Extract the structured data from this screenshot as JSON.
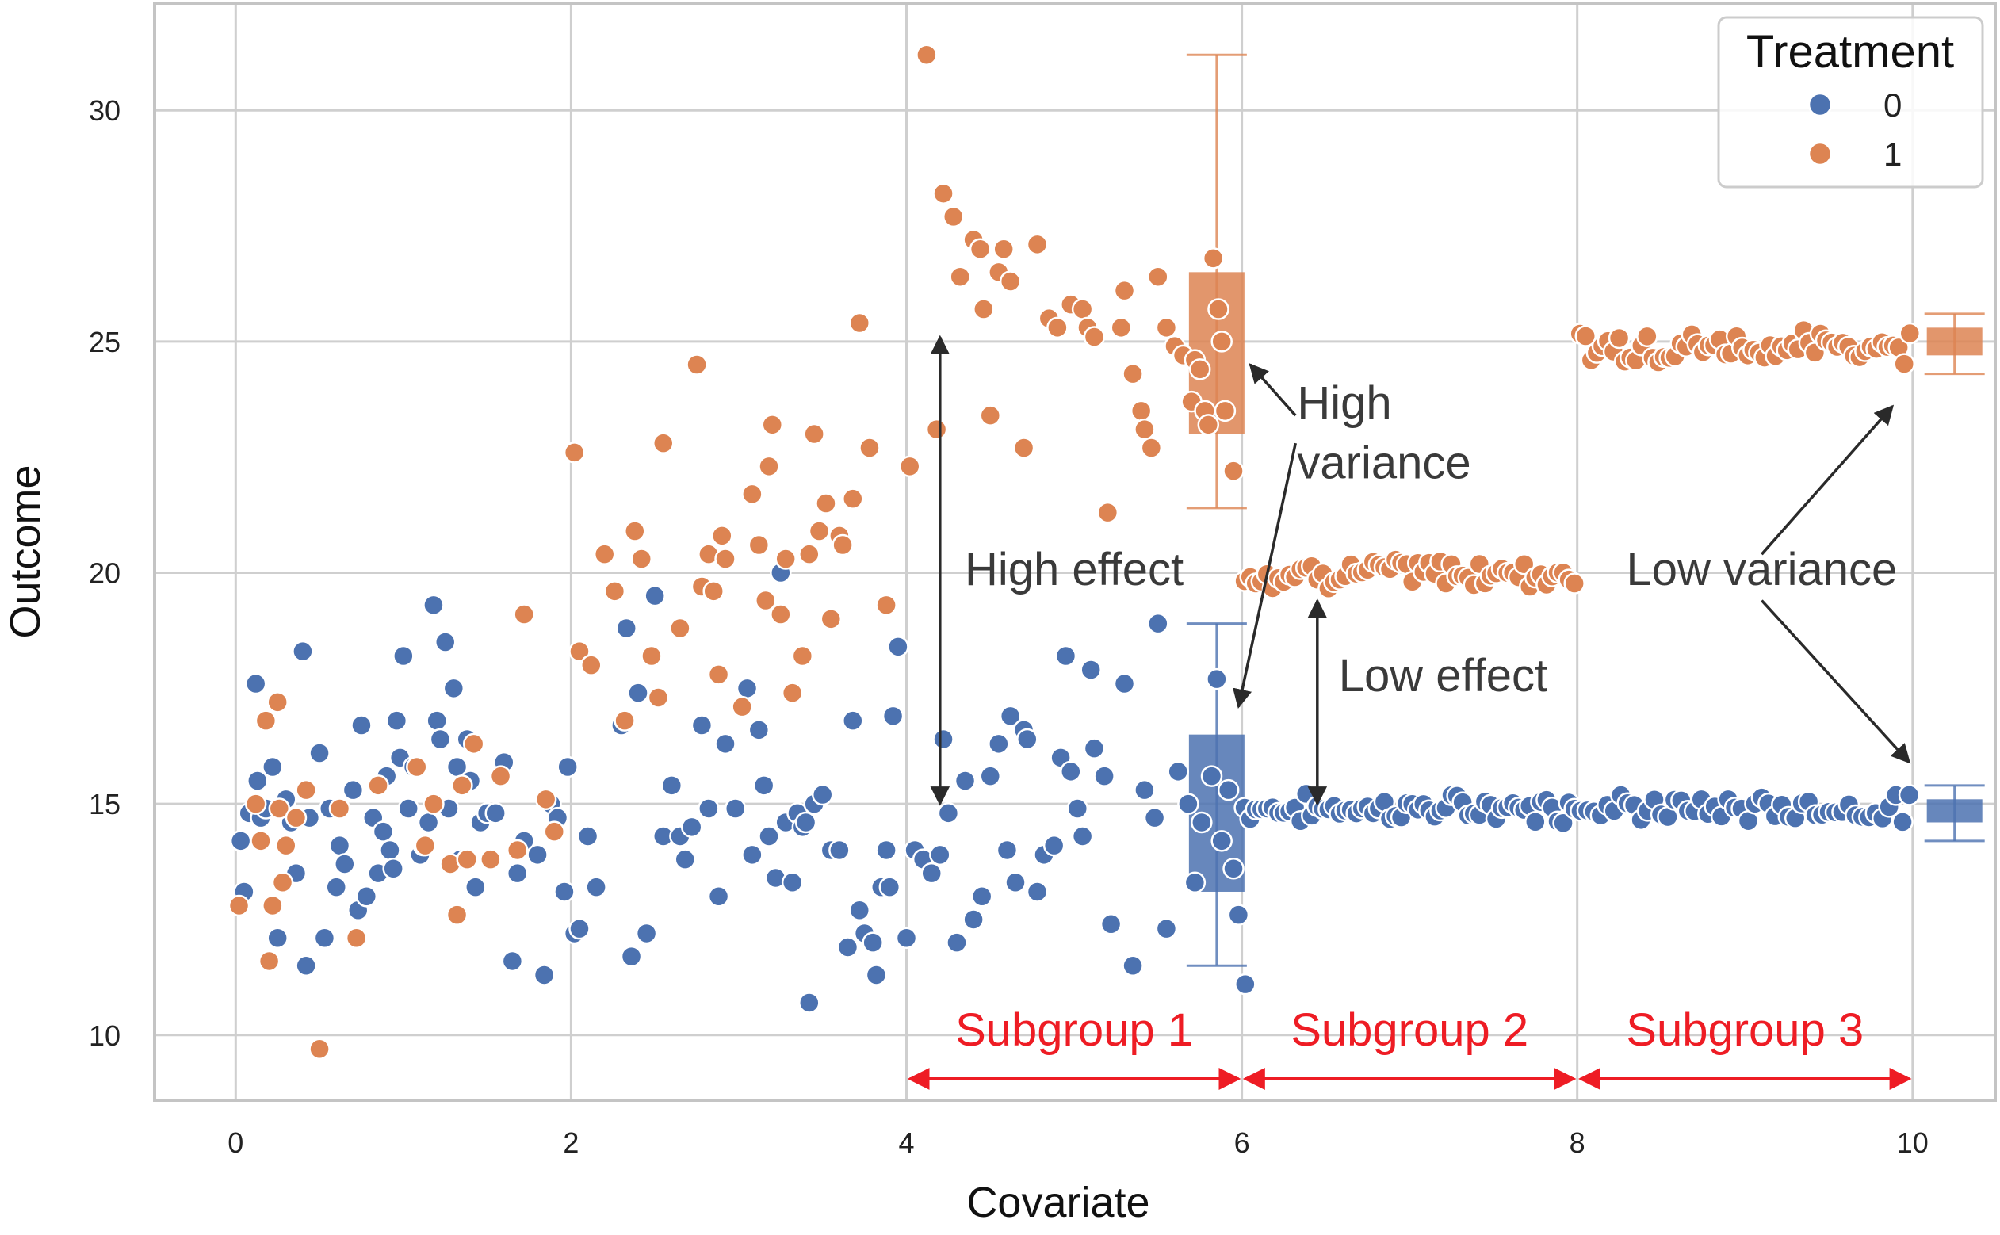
{
  "chart_data": {
    "type": "scatter",
    "xlabel": "Covariate",
    "ylabel": "Outcome",
    "xlim": [
      -0.5,
      10.5
    ],
    "ylim": [
      8.6,
      32.2
    ],
    "xticks": [
      0,
      2,
      4,
      6,
      8,
      10
    ],
    "yticks": [
      10,
      15,
      20,
      25,
      30
    ],
    "grid": true,
    "legend": {
      "title": "Treatment",
      "position": "top-right",
      "entries": [
        {
          "label": "0",
          "color": "#4c72b0"
        },
        {
          "label": "1",
          "color": "#dd8452"
        }
      ]
    },
    "series": [
      {
        "name": "0",
        "color": "#4c72b0",
        "points": [
          [
            0.03,
            14.2
          ],
          [
            0.05,
            13.1
          ],
          [
            0.08,
            14.8
          ],
          [
            0.12,
            17.6
          ],
          [
            0.13,
            15.5
          ],
          [
            0.15,
            14.7
          ],
          [
            0.18,
            14.9
          ],
          [
            0.22,
            15.8
          ],
          [
            0.25,
            12.1
          ],
          [
            0.28,
            14.9
          ],
          [
            0.3,
            15.1
          ],
          [
            0.33,
            14.6
          ],
          [
            0.36,
            13.5
          ],
          [
            0.4,
            18.3
          ],
          [
            0.42,
            11.5
          ],
          [
            0.44,
            14.7
          ],
          [
            0.5,
            16.1
          ],
          [
            0.53,
            12.1
          ],
          [
            0.56,
            14.9
          ],
          [
            0.6,
            13.2
          ],
          [
            0.62,
            14.1
          ],
          [
            0.65,
            13.7
          ],
          [
            0.7,
            15.3
          ],
          [
            0.73,
            12.7
          ],
          [
            0.75,
            16.7
          ],
          [
            0.78,
            13.0
          ],
          [
            0.82,
            14.7
          ],
          [
            0.85,
            13.5
          ],
          [
            0.88,
            14.4
          ],
          [
            0.9,
            15.6
          ],
          [
            0.92,
            14.0
          ],
          [
            0.94,
            13.6
          ],
          [
            0.96,
            16.8
          ],
          [
            0.98,
            16.0
          ],
          [
            1.0,
            18.2
          ],
          [
            1.03,
            14.9
          ],
          [
            1.06,
            15.8
          ],
          [
            1.1,
            13.9
          ],
          [
            1.12,
            14.1
          ],
          [
            1.15,
            14.6
          ],
          [
            1.18,
            19.3
          ],
          [
            1.2,
            16.8
          ],
          [
            1.22,
            16.4
          ],
          [
            1.25,
            18.5
          ],
          [
            1.27,
            14.9
          ],
          [
            1.3,
            17.5
          ],
          [
            1.32,
            15.8
          ],
          [
            1.34,
            13.8
          ],
          [
            1.38,
            16.4
          ],
          [
            1.4,
            15.5
          ],
          [
            1.43,
            13.2
          ],
          [
            1.46,
            14.6
          ],
          [
            1.5,
            14.8
          ],
          [
            1.55,
            14.8
          ],
          [
            1.6,
            15.9
          ],
          [
            1.65,
            11.6
          ],
          [
            1.68,
            13.5
          ],
          [
            1.72,
            14.2
          ],
          [
            1.8,
            13.9
          ],
          [
            1.84,
            11.3
          ],
          [
            1.88,
            15.0
          ],
          [
            1.92,
            14.7
          ],
          [
            1.96,
            13.1
          ],
          [
            1.98,
            15.8
          ],
          [
            2.02,
            12.2
          ],
          [
            2.05,
            12.3
          ],
          [
            2.1,
            14.3
          ],
          [
            2.15,
            13.2
          ],
          [
            2.3,
            16.7
          ],
          [
            2.33,
            18.8
          ],
          [
            2.36,
            11.7
          ],
          [
            2.4,
            17.4
          ],
          [
            2.45,
            12.2
          ],
          [
            2.5,
            19.5
          ],
          [
            2.55,
            14.3
          ],
          [
            2.6,
            15.4
          ],
          [
            2.65,
            14.3
          ],
          [
            2.68,
            13.8
          ],
          [
            2.72,
            14.5
          ],
          [
            2.78,
            16.7
          ],
          [
            2.82,
            14.9
          ],
          [
            2.88,
            13.0
          ],
          [
            2.92,
            16.3
          ],
          [
            2.98,
            14.9
          ],
          [
            3.05,
            17.5
          ],
          [
            3.08,
            13.9
          ],
          [
            3.12,
            16.6
          ],
          [
            3.15,
            15.4
          ],
          [
            3.18,
            14.3
          ],
          [
            3.22,
            13.4
          ],
          [
            3.25,
            20.0
          ],
          [
            3.28,
            14.6
          ],
          [
            3.32,
            13.3
          ],
          [
            3.35,
            14.8
          ],
          [
            3.38,
            14.5
          ],
          [
            3.4,
            14.6
          ],
          [
            3.42,
            10.7
          ],
          [
            3.45,
            15.0
          ],
          [
            3.5,
            15.2
          ],
          [
            3.55,
            14.0
          ],
          [
            3.6,
            14.0
          ],
          [
            3.65,
            11.9
          ],
          [
            3.68,
            16.8
          ],
          [
            3.72,
            12.7
          ],
          [
            3.75,
            12.2
          ],
          [
            3.8,
            12.0
          ],
          [
            3.82,
            11.3
          ],
          [
            3.85,
            13.2
          ],
          [
            3.88,
            14.0
          ],
          [
            3.9,
            13.2
          ],
          [
            3.92,
            16.9
          ],
          [
            3.95,
            18.4
          ],
          [
            4.0,
            12.1
          ],
          [
            4.05,
            14.0
          ],
          [
            4.1,
            13.8
          ],
          [
            4.15,
            13.5
          ],
          [
            4.2,
            13.9
          ],
          [
            4.22,
            16.4
          ],
          [
            4.25,
            14.8
          ],
          [
            4.3,
            12.0
          ],
          [
            4.35,
            15.5
          ],
          [
            4.4,
            12.5
          ],
          [
            4.45,
            13.0
          ],
          [
            4.5,
            15.6
          ],
          [
            4.55,
            16.3
          ],
          [
            4.6,
            14.0
          ],
          [
            4.62,
            16.9
          ],
          [
            4.65,
            13.3
          ],
          [
            4.7,
            16.6
          ],
          [
            4.72,
            16.4
          ],
          [
            4.78,
            13.1
          ],
          [
            4.82,
            13.9
          ],
          [
            4.88,
            14.1
          ],
          [
            4.92,
            16.0
          ],
          [
            4.95,
            18.2
          ],
          [
            4.98,
            15.7
          ],
          [
            5.02,
            14.9
          ],
          [
            5.05,
            14.3
          ],
          [
            5.1,
            17.9
          ],
          [
            5.12,
            16.2
          ],
          [
            5.18,
            15.6
          ],
          [
            5.22,
            12.4
          ],
          [
            5.3,
            17.6
          ],
          [
            5.35,
            11.5
          ],
          [
            5.42,
            15.3
          ],
          [
            5.48,
            14.7
          ],
          [
            5.5,
            18.9
          ],
          [
            5.55,
            12.3
          ],
          [
            5.62,
            15.7
          ],
          [
            5.68,
            15.0
          ],
          [
            5.72,
            13.3
          ],
          [
            5.76,
            14.6
          ],
          [
            5.82,
            15.6
          ],
          [
            5.85,
            17.7
          ],
          [
            5.88,
            14.2
          ],
          [
            5.92,
            15.3
          ],
          [
            5.95,
            13.6
          ],
          [
            5.98,
            12.6
          ],
          [
            6.02,
            11.1
          ]
        ]
      },
      {
        "name": "1",
        "color": "#dd8452",
        "points": [
          [
            0.02,
            12.8
          ],
          [
            0.12,
            15.0
          ],
          [
            0.15,
            14.2
          ],
          [
            0.18,
            16.8
          ],
          [
            0.2,
            11.6
          ],
          [
            0.22,
            12.8
          ],
          [
            0.25,
            17.2
          ],
          [
            0.26,
            14.9
          ],
          [
            0.28,
            13.3
          ],
          [
            0.3,
            14.1
          ],
          [
            0.36,
            14.7
          ],
          [
            0.42,
            15.3
          ],
          [
            0.5,
            9.7
          ],
          [
            0.62,
            14.9
          ],
          [
            0.72,
            12.1
          ],
          [
            0.85,
            15.4
          ],
          [
            1.08,
            15.8
          ],
          [
            1.13,
            14.1
          ],
          [
            1.18,
            15.0
          ],
          [
            1.28,
            13.7
          ],
          [
            1.32,
            12.6
          ],
          [
            1.35,
            15.4
          ],
          [
            1.38,
            13.8
          ],
          [
            1.42,
            16.3
          ],
          [
            1.52,
            13.8
          ],
          [
            1.58,
            15.6
          ],
          [
            1.68,
            14.0
          ],
          [
            1.72,
            19.1
          ],
          [
            1.85,
            15.1
          ],
          [
            1.9,
            14.4
          ],
          [
            2.02,
            22.6
          ],
          [
            2.05,
            18.3
          ],
          [
            2.12,
            18.0
          ],
          [
            2.2,
            20.4
          ],
          [
            2.26,
            19.6
          ],
          [
            2.32,
            16.8
          ],
          [
            2.38,
            20.9
          ],
          [
            2.42,
            20.3
          ],
          [
            2.48,
            18.2
          ],
          [
            2.52,
            17.3
          ],
          [
            2.55,
            22.8
          ],
          [
            2.65,
            18.8
          ],
          [
            2.75,
            24.5
          ],
          [
            2.78,
            19.7
          ],
          [
            2.82,
            20.4
          ],
          [
            2.85,
            19.6
          ],
          [
            2.88,
            17.8
          ],
          [
            2.9,
            20.8
          ],
          [
            2.92,
            20.3
          ],
          [
            3.02,
            17.1
          ],
          [
            3.08,
            21.7
          ],
          [
            3.12,
            20.6
          ],
          [
            3.16,
            19.4
          ],
          [
            3.18,
            22.3
          ],
          [
            3.2,
            23.2
          ],
          [
            3.25,
            19.1
          ],
          [
            3.28,
            20.3
          ],
          [
            3.32,
            17.4
          ],
          [
            3.38,
            18.2
          ],
          [
            3.42,
            20.4
          ],
          [
            3.45,
            23.0
          ],
          [
            3.48,
            20.9
          ],
          [
            3.52,
            21.5
          ],
          [
            3.55,
            19.0
          ],
          [
            3.6,
            20.8
          ],
          [
            3.62,
            20.6
          ],
          [
            3.68,
            21.6
          ],
          [
            3.72,
            25.4
          ],
          [
            3.78,
            22.7
          ],
          [
            3.88,
            19.3
          ],
          [
            4.02,
            22.3
          ],
          [
            4.12,
            31.2
          ],
          [
            4.18,
            23.1
          ],
          [
            4.22,
            28.2
          ],
          [
            4.28,
            27.7
          ],
          [
            4.32,
            26.4
          ],
          [
            4.4,
            27.2
          ],
          [
            4.44,
            27.0
          ],
          [
            4.46,
            25.7
          ],
          [
            4.5,
            23.4
          ],
          [
            4.55,
            26.5
          ],
          [
            4.58,
            27.0
          ],
          [
            4.62,
            26.3
          ],
          [
            4.7,
            22.7
          ],
          [
            4.78,
            27.1
          ],
          [
            4.85,
            25.5
          ],
          [
            4.9,
            25.3
          ],
          [
            4.98,
            25.8
          ],
          [
            5.05,
            25.7
          ],
          [
            5.08,
            25.3
          ],
          [
            5.12,
            25.1
          ],
          [
            5.2,
            21.3
          ],
          [
            5.28,
            25.3
          ],
          [
            5.3,
            26.1
          ],
          [
            5.35,
            24.3
          ],
          [
            5.4,
            23.5
          ],
          [
            5.42,
            23.1
          ],
          [
            5.46,
            22.7
          ],
          [
            5.5,
            26.4
          ],
          [
            5.55,
            25.3
          ],
          [
            5.6,
            24.9
          ],
          [
            5.65,
            24.7
          ],
          [
            5.7,
            23.7
          ],
          [
            5.72,
            24.6
          ],
          [
            5.75,
            24.4
          ],
          [
            5.78,
            23.5
          ],
          [
            5.8,
            23.2
          ],
          [
            5.83,
            26.8
          ],
          [
            5.86,
            25.7
          ],
          [
            5.88,
            25.0
          ],
          [
            5.9,
            23.5
          ],
          [
            5.95,
            22.2
          ]
        ]
      }
    ],
    "bands": [
      {
        "series": "0",
        "xmin": 6.0,
        "xmax": 8.0,
        "center": 14.9,
        "spread": 0.35,
        "count": 60
      },
      {
        "series": "1",
        "xmin": 6.0,
        "xmax": 8.0,
        "center": 20.0,
        "spread": 0.4,
        "count": 60
      },
      {
        "series": "0",
        "xmin": 8.0,
        "xmax": 10.0,
        "center": 14.9,
        "spread": 0.35,
        "count": 50
      },
      {
        "series": "1",
        "xmin": 8.0,
        "xmax": 10.0,
        "center": 24.9,
        "spread": 0.45,
        "count": 60
      }
    ],
    "boxplots": [
      {
        "series": "1",
        "x": 5.85,
        "q1": 23.0,
        "q3": 26.5,
        "whisker_low": 21.4,
        "whisker_high": 31.2
      },
      {
        "series": "0",
        "x": 5.85,
        "q1": 13.1,
        "q3": 16.5,
        "whisker_low": 11.5,
        "whisker_high": 18.9
      },
      {
        "series": "1",
        "x": 10.25,
        "q1": 24.7,
        "q3": 25.3,
        "whisker_low": 24.3,
        "whisker_high": 25.6
      },
      {
        "series": "0",
        "x": 10.25,
        "q1": 14.6,
        "q3": 15.1,
        "whisker_low": 14.2,
        "whisker_high": 15.4
      }
    ],
    "annotations": [
      {
        "text": "High effect",
        "x": 5.0,
        "y": 20.0
      },
      {
        "text": "High",
        "x": 6.33,
        "y": 23.6
      },
      {
        "text": "variance",
        "x": 6.33,
        "y": 22.3
      },
      {
        "text": "Low effect",
        "x": 7.2,
        "y": 17.7
      },
      {
        "text": "Low variance",
        "x": 9.1,
        "y": 20.0
      }
    ],
    "subgroups": [
      {
        "label": "Subgroup 1",
        "xmin": 4,
        "xmax": 6
      },
      {
        "label": "Subgroup 2",
        "xmin": 6,
        "xmax": 8
      },
      {
        "label": "Subgroup 3",
        "xmin": 8,
        "xmax": 10
      }
    ],
    "arrows": [
      {
        "kind": "double",
        "x1": 4.2,
        "y1": 25.1,
        "x2": 4.2,
        "y2": 15.0
      },
      {
        "kind": "double",
        "x1": 6.45,
        "y1": 19.4,
        "x2": 6.45,
        "y2": 15.0
      },
      {
        "kind": "single",
        "x1": 6.32,
        "y1": 23.4,
        "x2": 6.05,
        "y2": 24.5
      },
      {
        "kind": "single",
        "x1": 6.32,
        "y1": 22.8,
        "x2": 5.98,
        "y2": 17.1
      },
      {
        "kind": "single",
        "x1": 9.1,
        "y1": 20.4,
        "x2": 9.88,
        "y2": 23.6
      },
      {
        "kind": "single",
        "x1": 9.1,
        "y1": 19.4,
        "x2": 9.98,
        "y2": 15.9
      }
    ],
    "subgroup_color": "#ee1c24",
    "arrow_color": "#2a2a2a"
  }
}
